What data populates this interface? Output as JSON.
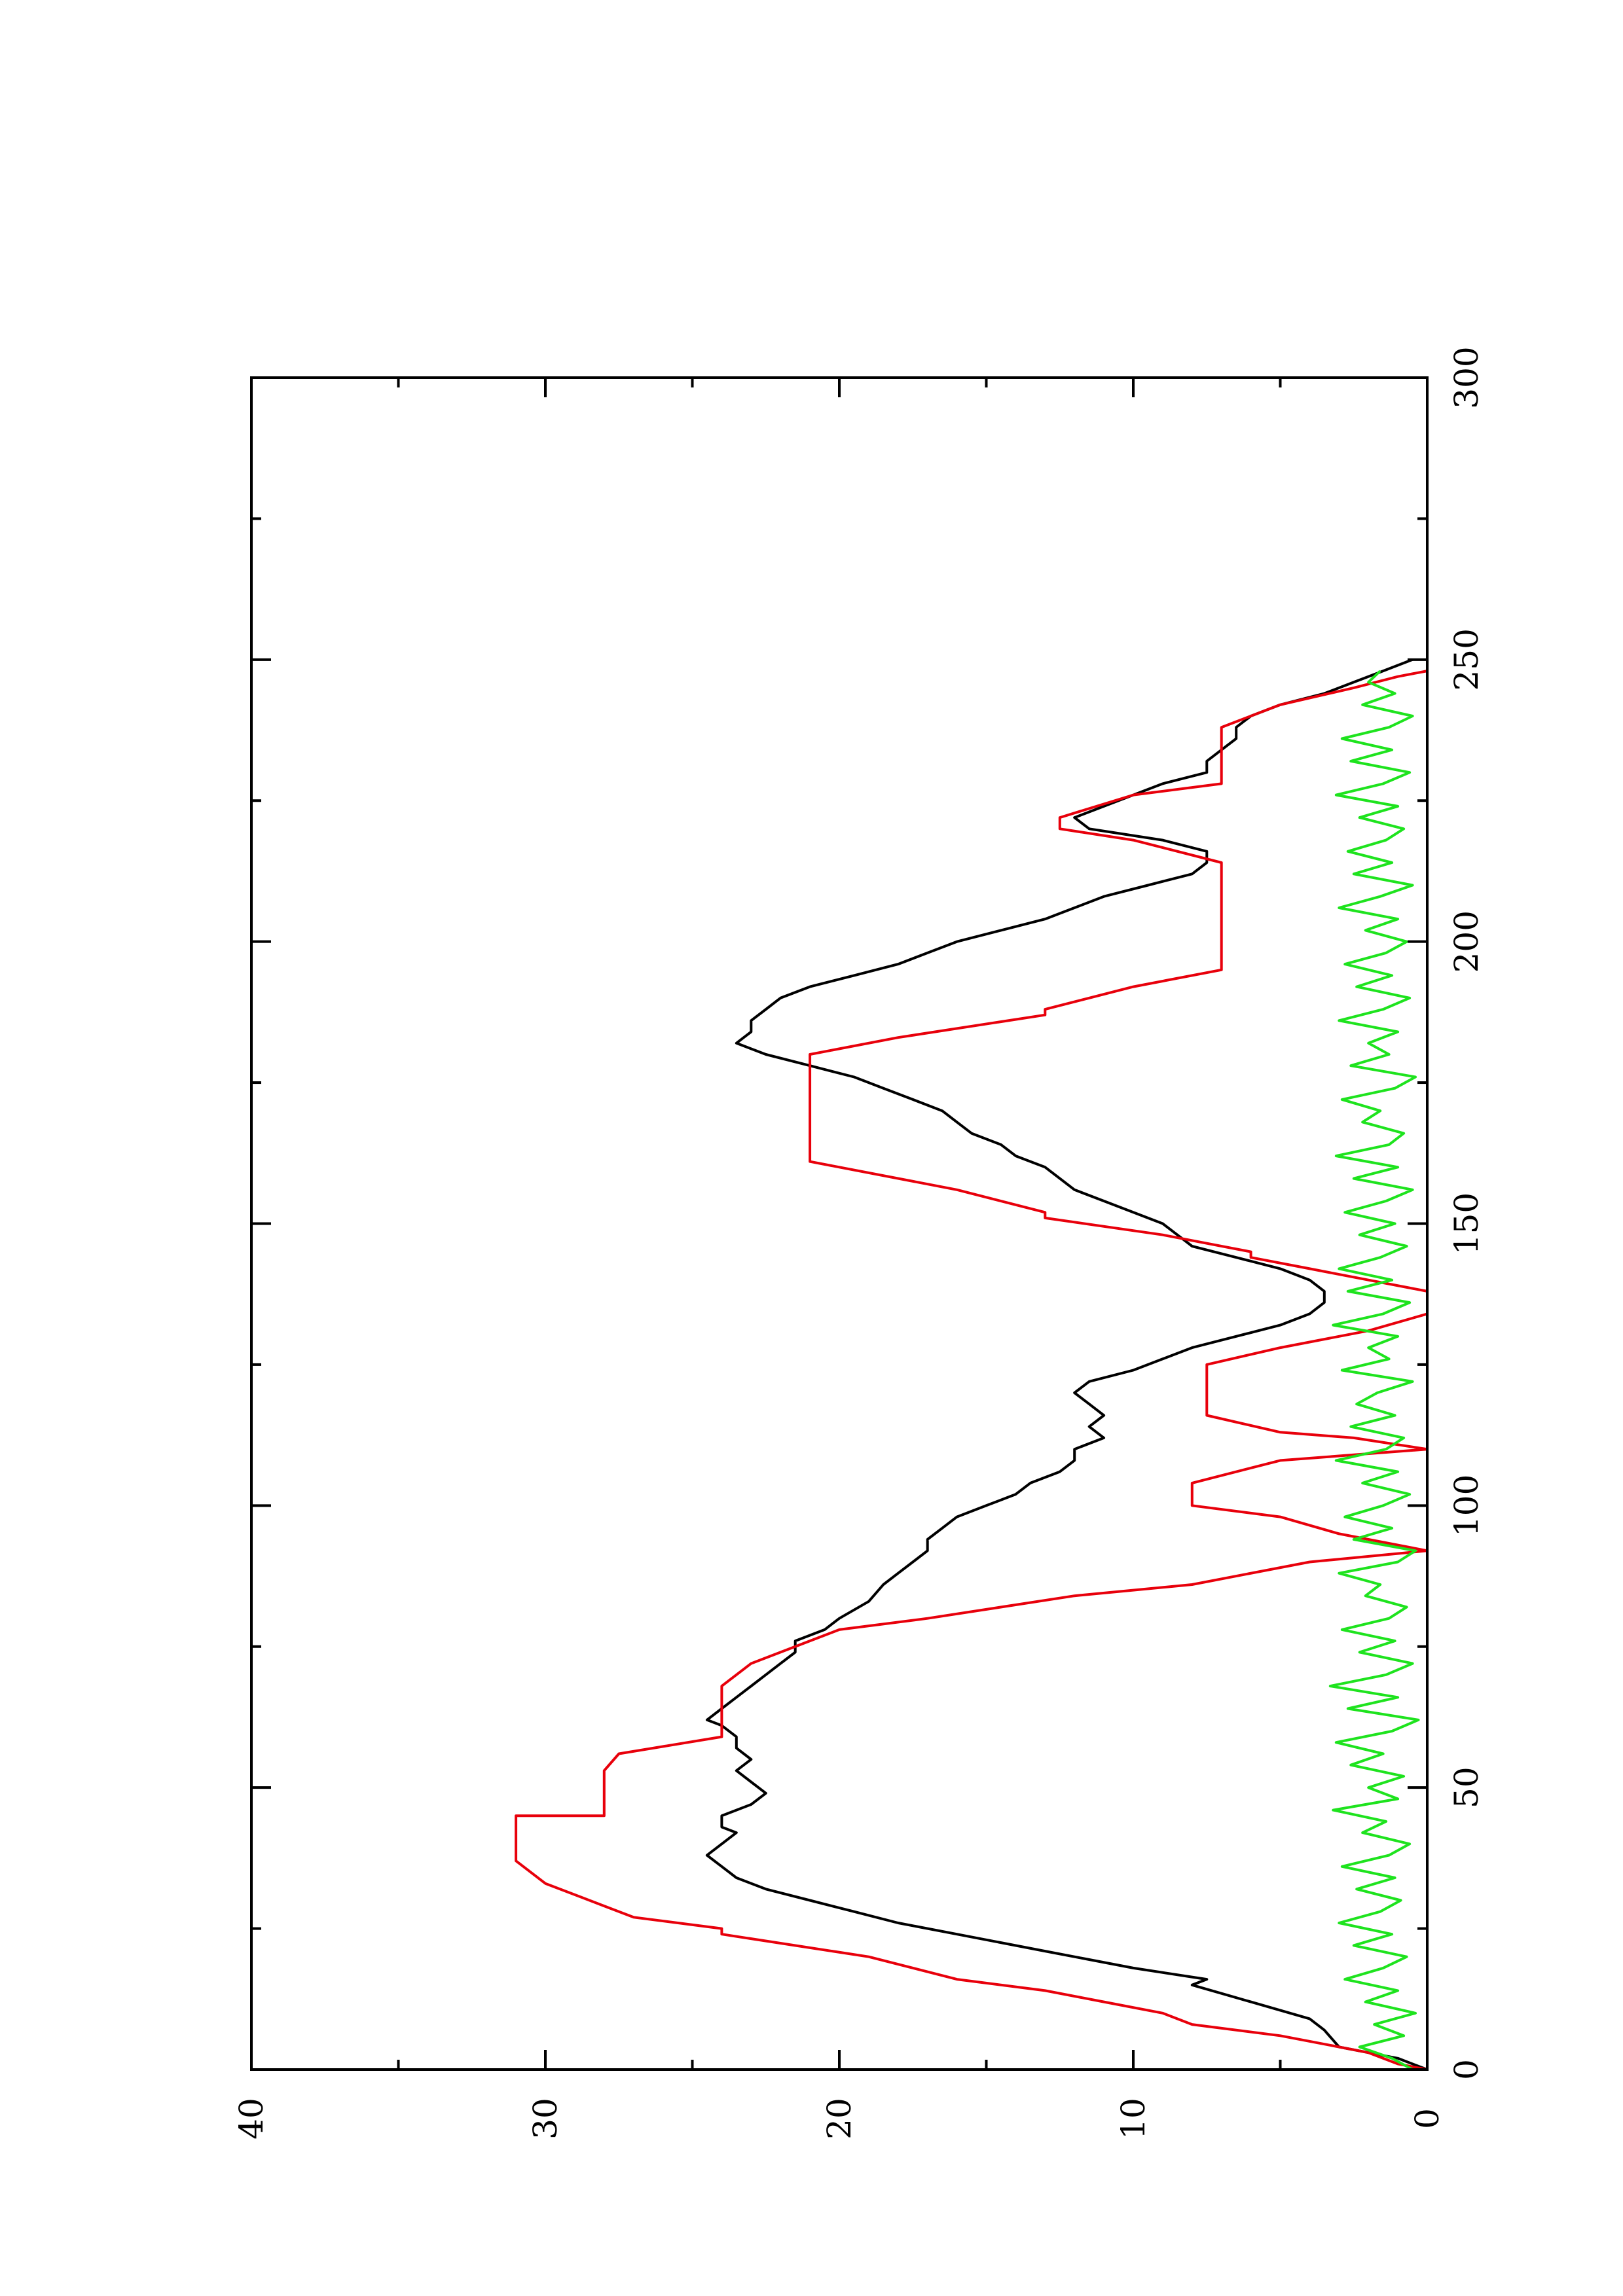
{
  "chart_data": {
    "type": "line",
    "orientation": "rotated-90-ccw",
    "title": "",
    "xlabel": "",
    "ylabel": "",
    "xlim": [
      0,
      300
    ],
    "ylim": [
      0,
      40
    ],
    "x_ticks": [
      0,
      50,
      100,
      150,
      200,
      250,
      300
    ],
    "y_ticks": [
      0,
      10,
      20,
      30,
      40
    ],
    "x_tick_labels": [
      "0",
      "50",
      "100",
      "150",
      "200",
      "250",
      "300"
    ],
    "y_tick_labels": [
      "0",
      "10",
      "20",
      "30",
      "40"
    ],
    "grid": false,
    "legend": "none",
    "series": [
      {
        "color": "#000000",
        "x": [
          0,
          2,
          4,
          7,
          9,
          12,
          15,
          16,
          18,
          21,
          24,
          26,
          28,
          30,
          32,
          34,
          36,
          38,
          40,
          42,
          43,
          45,
          47,
          49,
          51,
          53,
          55,
          57,
          59,
          61,
          62,
          64,
          66,
          68,
          70,
          72,
          74,
          76,
          78,
          80,
          83,
          86,
          88,
          90,
          92,
          94,
          96,
          98,
          100,
          102,
          104,
          106,
          108,
          110,
          112,
          114,
          116,
          118,
          120,
          122,
          124,
          126,
          128,
          130,
          132,
          134,
          136,
          138,
          140,
          142,
          144,
          146,
          148,
          150,
          152,
          154,
          156,
          158,
          160,
          162,
          164,
          166,
          168,
          170,
          172,
          174,
          176,
          178,
          180,
          182,
          184,
          186,
          188,
          190,
          192,
          194,
          196,
          198,
          200,
          202,
          204,
          206,
          208,
          210,
          212,
          214,
          216,
          218,
          220,
          222,
          224,
          226,
          228,
          230,
          232,
          234,
          236,
          238,
          240,
          242,
          244,
          246,
          248,
          250
        ],
        "y": [
          0,
          1,
          3,
          3.5,
          4,
          6,
          8,
          7.5,
          10,
          13,
          16,
          18,
          19.5,
          21,
          22.5,
          23.5,
          24,
          24.5,
          24,
          23.5,
          24,
          24,
          23,
          22.5,
          23,
          23.5,
          23,
          23.5,
          23.5,
          24,
          24.5,
          24,
          23.5,
          23,
          22.5,
          22,
          21.5,
          21.5,
          20.5,
          20,
          19,
          18.5,
          18,
          17.5,
          17,
          17,
          16.5,
          16,
          15,
          14,
          13.5,
          12.5,
          12,
          12,
          11,
          11.5,
          11,
          11.5,
          12,
          11.5,
          10,
          9,
          8,
          6.5,
          5,
          4,
          3.5,
          3.5,
          4,
          5,
          6.5,
          8,
          8.5,
          9,
          10,
          11,
          12,
          12.5,
          13,
          14,
          14.5,
          15.5,
          16,
          16.5,
          17.5,
          18.5,
          19.5,
          21,
          22.5,
          23.5,
          23,
          23,
          22.5,
          22,
          21,
          19.5,
          18,
          17,
          16,
          14.5,
          13,
          12,
          11,
          9.5,
          8,
          7.5,
          7.5,
          9,
          11.5,
          12,
          11,
          10,
          9,
          7.5,
          7.5,
          7,
          6.5,
          6.5,
          6,
          5,
          3.5,
          2.5,
          1.5,
          0.5
        ]
      },
      {
        "color": "#e8000b",
        "x": [
          0,
          1,
          3,
          4,
          4,
          6,
          8,
          10,
          12,
          14,
          16,
          16,
          20,
          24,
          25,
          25,
          27,
          29,
          29,
          33,
          37,
          41,
          41,
          45,
          45,
          49,
          53,
          56,
          56,
          59,
          62,
          62,
          65,
          67,
          68,
          68,
          72,
          76,
          78,
          78,
          80,
          84,
          86,
          86,
          90,
          92,
          92,
          95,
          98,
          100,
          100,
          104,
          108,
          109,
          110,
          112,
          113,
          113,
          116,
          118,
          118,
          122,
          125,
          128,
          128,
          131,
          134,
          136,
          138,
          140,
          142,
          144,
          145,
          145,
          148,
          151,
          152,
          152,
          156,
          160,
          161,
          161,
          164,
          166,
          166,
          170,
          174,
          178,
          180,
          180,
          183,
          187,
          188,
          188,
          192,
          195,
          195,
          199,
          202,
          202,
          206,
          210,
          214,
          214,
          218,
          220,
          222,
          222,
          226,
          228,
          230,
          230,
          233,
          236,
          238,
          238,
          242,
          245,
          247,
          248
        ],
        "y": [
          0,
          1,
          2,
          3,
          3,
          5,
          8,
          9,
          11,
          13,
          16,
          16,
          19,
          24,
          24,
          24,
          27,
          28,
          28,
          30,
          31,
          31,
          31,
          31,
          28,
          28,
          28,
          27.5,
          27.5,
          24,
          24,
          24,
          24,
          24,
          24,
          24,
          23,
          21,
          20,
          20,
          17,
          12,
          8,
          8,
          4,
          0,
          0,
          3,
          5,
          8,
          8,
          8,
          5,
          2.5,
          0,
          2.5,
          5,
          5,
          7.5,
          7.5,
          7.5,
          7.5,
          7.5,
          5,
          5,
          2,
          0,
          0,
          0,
          2,
          4,
          6,
          6,
          6,
          9,
          13,
          13,
          13,
          16,
          20,
          21,
          21,
          21,
          21,
          21,
          21,
          21,
          21,
          21,
          21,
          18,
          13,
          13,
          13,
          10,
          7,
          7,
          7,
          7,
          7,
          7,
          7,
          7,
          7,
          10,
          12.5,
          12.5,
          12.5,
          10,
          7,
          7,
          7,
          7,
          7,
          7,
          7,
          5,
          2.5,
          1,
          0
        ]
      },
      {
        "color": "#1ee31e",
        "x": [
          0,
          2,
          4,
          6,
          8,
          10,
          12,
          14,
          16,
          18,
          20,
          22,
          24,
          26,
          28,
          30,
          32,
          34,
          36,
          38,
          40,
          42,
          44,
          46,
          48,
          50,
          52,
          54,
          56,
          58,
          60,
          62,
          64,
          66,
          68,
          70,
          72,
          74,
          76,
          78,
          80,
          82,
          84,
          86,
          88,
          90,
          92,
          94,
          96,
          98,
          100,
          102,
          104,
          106,
          108,
          110,
          112,
          114,
          116,
          118,
          120,
          122,
          124,
          126,
          128,
          130,
          132,
          134,
          136,
          138,
          140,
          142,
          144,
          146,
          148,
          150,
          152,
          154,
          156,
          158,
          160,
          162,
          164,
          166,
          168,
          170,
          172,
          174,
          176,
          178,
          180,
          182,
          184,
          186,
          188,
          190,
          192,
          194,
          196,
          198,
          200,
          202,
          204,
          206,
          208,
          210,
          212,
          214,
          216,
          218,
          220,
          222,
          224,
          226,
          228,
          230,
          232,
          234,
          236,
          238,
          240,
          242,
          244,
          246,
          248
        ],
        "y": [
          0.5,
          1.2,
          2.3,
          0.8,
          1.8,
          0.4,
          2.1,
          1.0,
          2.8,
          1.5,
          0.7,
          2.5,
          1.2,
          3.0,
          1.6,
          0.9,
          2.4,
          1.1,
          2.9,
          1.3,
          0.6,
          2.2,
          1.4,
          3.2,
          1.0,
          2.0,
          0.8,
          2.6,
          1.5,
          3.1,
          1.2,
          0.3,
          2.7,
          1.0,
          3.3,
          1.4,
          0.5,
          2.3,
          1.1,
          2.9,
          1.3,
          0.7,
          2.1,
          1.6,
          3.0,
          1.0,
          0.4,
          2.5,
          1.2,
          2.8,
          1.5,
          0.6,
          2.2,
          1.0,
          3.1,
          1.4,
          0.8,
          2.6,
          1.1,
          2.4,
          1.7,
          0.5,
          2.9,
          1.3,
          2.0,
          1.0,
          3.2,
          1.5,
          0.6,
          2.7,
          1.2,
          3.0,
          1.6,
          0.7,
          2.3,
          1.1,
          2.8,
          1.4,
          0.5,
          2.5,
          1.0,
          3.1,
          1.3,
          0.8,
          2.2,
          1.6,
          2.9,
          1.1,
          0.4,
          2.6,
          1.3,
          2.0,
          1.0,
          3.0,
          1.5,
          0.6,
          2.4,
          1.2,
          2.8,
          1.4,
          0.7,
          2.1,
          1.0,
          3.0,
          1.6,
          0.5,
          2.5,
          1.2,
          2.7,
          1.4,
          0.8,
          2.3,
          1.0,
          3.1,
          1.5,
          0.6,
          2.6,
          1.2,
          2.9,
          1.3,
          0.5,
          2.2,
          1.1,
          2.0,
          1.6
        ]
      }
    ]
  }
}
